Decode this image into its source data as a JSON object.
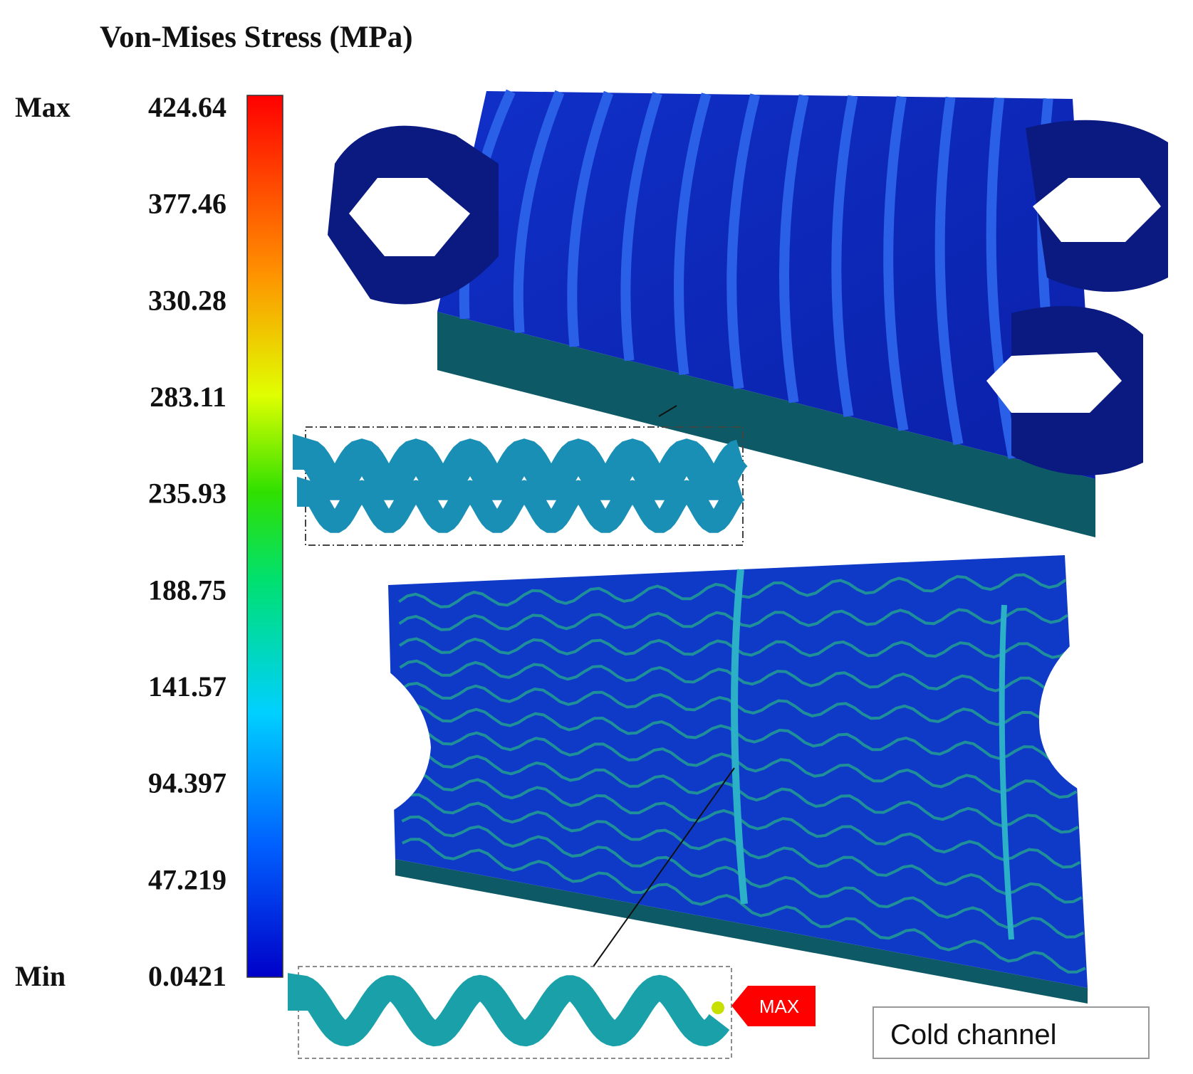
{
  "title": "Von-Mises Stress (MPa)",
  "colorbar": {
    "max_label": "Max",
    "min_label": "Min",
    "ticks": [
      "424.64",
      "377.46",
      "330.28",
      "283.11",
      "235.93",
      "188.75",
      "141.57",
      "94.397",
      "47.219",
      "0.0421"
    ]
  },
  "annotations": {
    "max_marker": "MAX",
    "channel_label": "Cold channel"
  }
}
